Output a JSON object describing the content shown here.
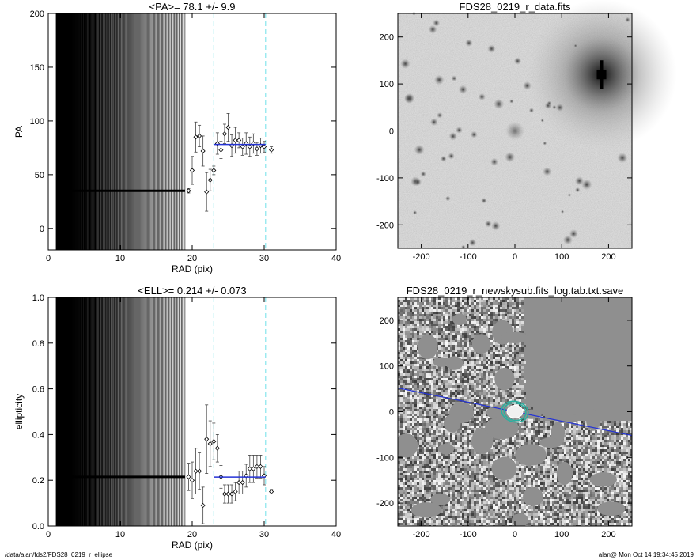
{
  "footer": {
    "left": "/data/alan/fds2/FDS28_0219_r_ellipse",
    "right": "alan@  Mon Oct 14 19:34:45 2019"
  },
  "chart_data": [
    {
      "type": "scatter",
      "title": "<PA>=  78.1 +/-   9.9",
      "xlabel": "RAD (pix)",
      "ylabel": "PA",
      "xlim": [
        0,
        40
      ],
      "ylim": [
        -20,
        200
      ],
      "xticks": [
        "0",
        "10",
        "20",
        "30",
        "40"
      ],
      "yticks": [
        "0",
        "50",
        "100",
        "150",
        "200"
      ],
      "vlines_dashed": [
        23,
        30.2
      ],
      "mean_segment": {
        "x": [
          23,
          30.2
        ],
        "y": 78.1
      },
      "flat_x_start": 1.1,
      "flat_x_end": 19.0,
      "flat_y": 35,
      "points": [
        {
          "x": 19.5,
          "y": 35,
          "err": 2
        },
        {
          "x": 20.0,
          "y": 54,
          "err": 13
        },
        {
          "x": 20.5,
          "y": 85,
          "err": 14
        },
        {
          "x": 21.0,
          "y": 86,
          "err": 10
        },
        {
          "x": 21.5,
          "y": 72,
          "err": 14
        },
        {
          "x": 22.0,
          "y": 34,
          "err": 18
        },
        {
          "x": 22.5,
          "y": 45,
          "err": 10
        },
        {
          "x": 23.0,
          "y": 54,
          "err": 4
        },
        {
          "x": 23.5,
          "y": 79,
          "err": 10
        },
        {
          "x": 24.0,
          "y": 73,
          "err": 8
        },
        {
          "x": 24.5,
          "y": 88,
          "err": 9
        },
        {
          "x": 25.0,
          "y": 94,
          "err": 13
        },
        {
          "x": 25.5,
          "y": 77,
          "err": 10
        },
        {
          "x": 26.0,
          "y": 82,
          "err": 12
        },
        {
          "x": 26.5,
          "y": 82,
          "err": 7
        },
        {
          "x": 27.0,
          "y": 76,
          "err": 8
        },
        {
          "x": 27.5,
          "y": 79,
          "err": 10
        },
        {
          "x": 28.0,
          "y": 76,
          "err": 9
        },
        {
          "x": 28.5,
          "y": 79,
          "err": 9
        },
        {
          "x": 29.0,
          "y": 74,
          "err": 6
        },
        {
          "x": 29.5,
          "y": 77,
          "err": 7
        },
        {
          "x": 30.0,
          "y": 76,
          "err": 5
        },
        {
          "x": 31.0,
          "y": 73,
          "err": 3
        }
      ]
    },
    {
      "type": "scatter",
      "title": "<ELL>= 0.214 +/-  0.073",
      "xlabel": "RAD (pix)",
      "ylabel": "ellipticity",
      "xlim": [
        0,
        40
      ],
      "ylim": [
        0,
        1
      ],
      "xticks": [
        "0",
        "10",
        "20",
        "30",
        "40"
      ],
      "yticks": [
        "0.0",
        "0.2",
        "0.4",
        "0.6",
        "0.8",
        "1.0"
      ],
      "vlines_dashed": [
        23,
        30.2
      ],
      "mean_segment": {
        "x": [
          23,
          30.2
        ],
        "y": 0.214
      },
      "flat_x_start": 1.1,
      "flat_x_end": 19.0,
      "flat_y": 0.215,
      "points": [
        {
          "x": 19.5,
          "y": 0.215,
          "err": 0.06
        },
        {
          "x": 20.0,
          "y": 0.2,
          "err": 0.08
        },
        {
          "x": 20.5,
          "y": 0.24,
          "err": 0.1
        },
        {
          "x": 21.0,
          "y": 0.24,
          "err": 0.08
        },
        {
          "x": 21.5,
          "y": 0.09,
          "err": 0.08
        },
        {
          "x": 22.0,
          "y": 0.38,
          "err": 0.15
        },
        {
          "x": 22.5,
          "y": 0.36,
          "err": 0.1
        },
        {
          "x": 23.0,
          "y": 0.37,
          "err": 0.08
        },
        {
          "x": 23.5,
          "y": 0.34,
          "err": 0.06
        },
        {
          "x": 24.0,
          "y": 0.215,
          "err": 0.05
        },
        {
          "x": 24.5,
          "y": 0.14,
          "err": 0.04
        },
        {
          "x": 25.0,
          "y": 0.14,
          "err": 0.04
        },
        {
          "x": 25.5,
          "y": 0.14,
          "err": 0.04
        },
        {
          "x": 26.0,
          "y": 0.15,
          "err": 0.04
        },
        {
          "x": 26.5,
          "y": 0.19,
          "err": 0.05
        },
        {
          "x": 27.0,
          "y": 0.19,
          "err": 0.05
        },
        {
          "x": 27.5,
          "y": 0.22,
          "err": 0.05
        },
        {
          "x": 28.0,
          "y": 0.25,
          "err": 0.06
        },
        {
          "x": 28.5,
          "y": 0.25,
          "err": 0.06
        },
        {
          "x": 29.0,
          "y": 0.26,
          "err": 0.05
        },
        {
          "x": 29.5,
          "y": 0.26,
          "err": 0.05
        },
        {
          "x": 30.0,
          "y": 0.22,
          "err": 0.04
        },
        {
          "x": 31.0,
          "y": 0.15,
          "err": 0.01
        }
      ]
    },
    {
      "type": "image",
      "title": "FDS28_0219_r_data.fits",
      "xlim": [
        -250,
        250
      ],
      "ylim": [
        -250,
        250
      ],
      "xticks": [
        "-200",
        "-100",
        "0",
        "100",
        "200"
      ],
      "yticks": [
        "-200",
        "-100",
        "0",
        "100",
        "200"
      ]
    },
    {
      "type": "image",
      "title": "FDS28_0219_r_newskysub.fits_log.tab.txt.save",
      "xlim": [
        -250,
        250
      ],
      "ylim": [
        -250,
        250
      ],
      "xticks": [
        "-200",
        "-100",
        "0",
        "100",
        "200"
      ],
      "yticks": [
        "-200",
        "-100",
        "0",
        "100",
        "200"
      ]
    }
  ]
}
